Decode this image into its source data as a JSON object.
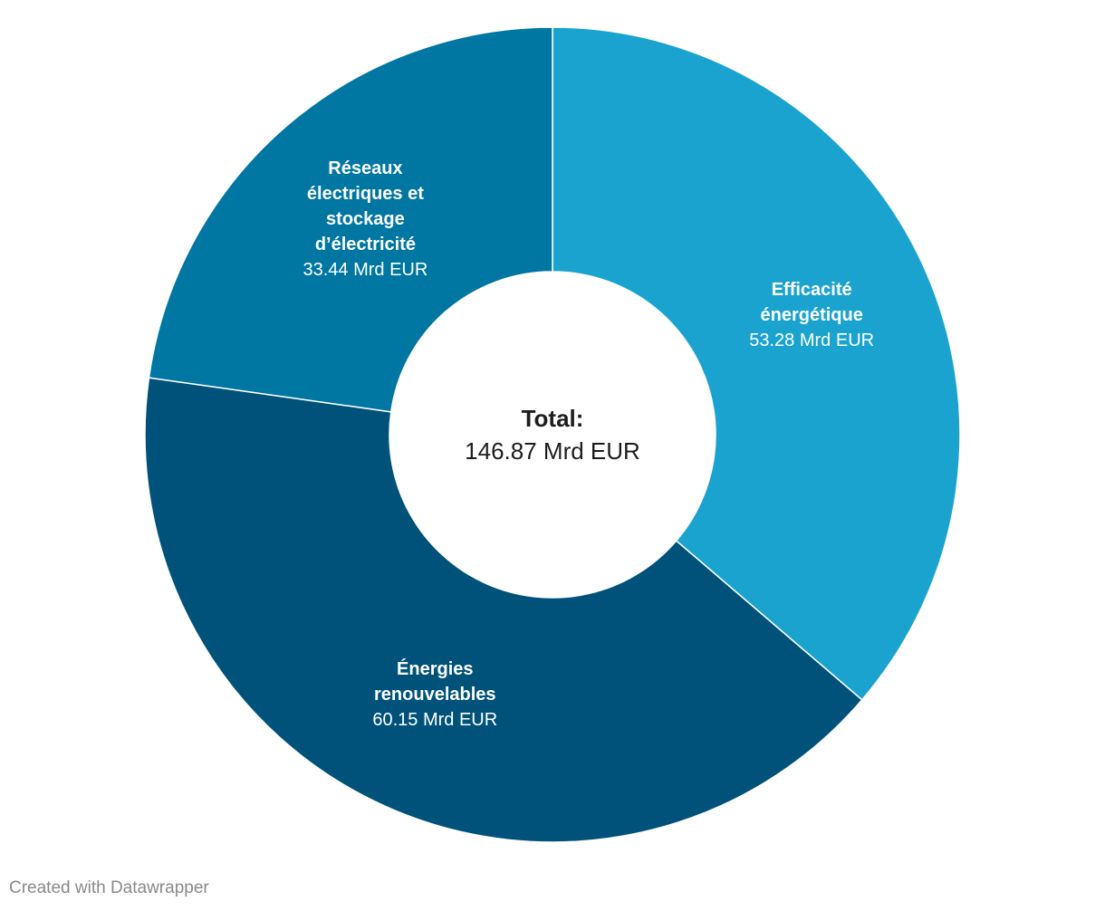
{
  "chart_data": {
    "type": "donut",
    "categories": [
      "Efficacité énergétique",
      "Énergies renouvelables",
      "Réseaux électriques et stockage d’électricité"
    ],
    "values": [
      53.28,
      60.15,
      33.44
    ],
    "value_labels": [
      "53.28 Mrd EUR",
      "60.15 Mrd EUR",
      "33.44 Mrd EUR"
    ],
    "colors": [
      "#1ba3cf",
      "#00527a",
      "#0076a3"
    ],
    "center_title": "Total:",
    "center_value": "146.87 Mrd EUR"
  },
  "credit": "Created with Datawrapper"
}
